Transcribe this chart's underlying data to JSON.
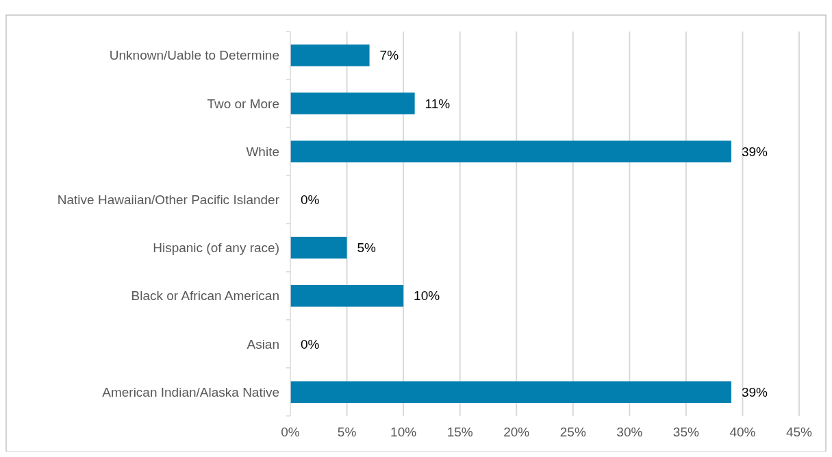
{
  "chart_data": {
    "type": "bar",
    "orientation": "horizontal",
    "categories": [
      "Unknown/Uable to Determine",
      "Two or More",
      "White",
      "Native Hawaiian/Other Pacific Islander",
      "Hispanic (of any race)",
      "Black or African American",
      "Asian",
      "American Indian/Alaska Native"
    ],
    "values": [
      7,
      11,
      39,
      0,
      5,
      10,
      0,
      39
    ],
    "value_labels": [
      "7%",
      "11%",
      "39%",
      "0%",
      "5%",
      "10%",
      "0%",
      "39%"
    ],
    "color": "#027fae",
    "xlim": [
      0,
      45
    ],
    "xticks": [
      {
        "value": 0,
        "label": "0%"
      },
      {
        "value": 5,
        "label": "5%"
      },
      {
        "value": 10,
        "label": "10%"
      },
      {
        "value": 15,
        "label": "15%"
      },
      {
        "value": 20,
        "label": "20%"
      },
      {
        "value": 25,
        "label": "25%"
      },
      {
        "value": 30,
        "label": "30%"
      },
      {
        "value": 35,
        "label": "35%"
      },
      {
        "value": 40,
        "label": "40%"
      },
      {
        "value": 45,
        "label": "45%"
      }
    ],
    "grid": "x"
  }
}
